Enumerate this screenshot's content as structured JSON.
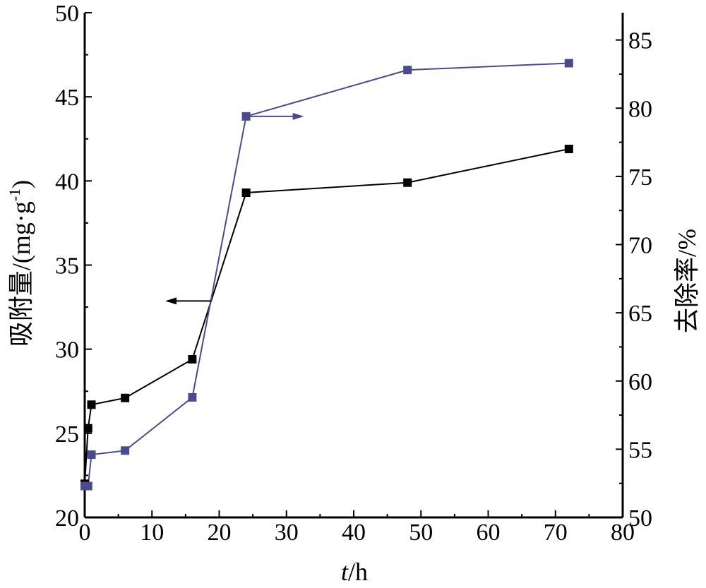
{
  "chart_data": {
    "type": "line",
    "xlabel": {
      "italic": "t",
      "rest": "/h"
    },
    "ylabel_left": {
      "main": "吸附量/(mg·g",
      "sup": "-1",
      "tail": ")"
    },
    "ylabel_right": "去除率/%",
    "xlim": [
      0,
      80
    ],
    "ylim_left": [
      20,
      50
    ],
    "ylim_right": [
      50,
      87
    ],
    "x_ticks": [
      "0",
      "10",
      "20",
      "30",
      "40",
      "50",
      "60",
      "70",
      "80"
    ],
    "y_left_ticks": [
      "20",
      "25",
      "30",
      "35",
      "40",
      "45",
      "50"
    ],
    "y_right_ticks": [
      "50",
      "55",
      "60",
      "65",
      "70",
      "75",
      "80",
      "85"
    ],
    "grid": false,
    "series": [
      {
        "axis": "left",
        "color": "#000000",
        "x": [
          0,
          0.5,
          1,
          6,
          16,
          24,
          48,
          72
        ],
        "y": [
          22.0,
          25.3,
          26.7,
          27.1,
          29.4,
          39.3,
          39.9,
          41.9
        ]
      },
      {
        "axis": "right",
        "color": "#4b4a8c",
        "x": [
          0,
          0.5,
          1,
          6,
          16,
          24,
          48,
          72
        ],
        "y": [
          52.3,
          52.3,
          54.6,
          54.9,
          58.8,
          79.4,
          82.8,
          83.3
        ]
      }
    ],
    "annotations": [
      {
        "type": "arrow",
        "direction": "left",
        "series": 0,
        "color": "#000000"
      },
      {
        "type": "arrow",
        "direction": "right",
        "series": 1,
        "color": "#4b4a8c"
      }
    ]
  }
}
